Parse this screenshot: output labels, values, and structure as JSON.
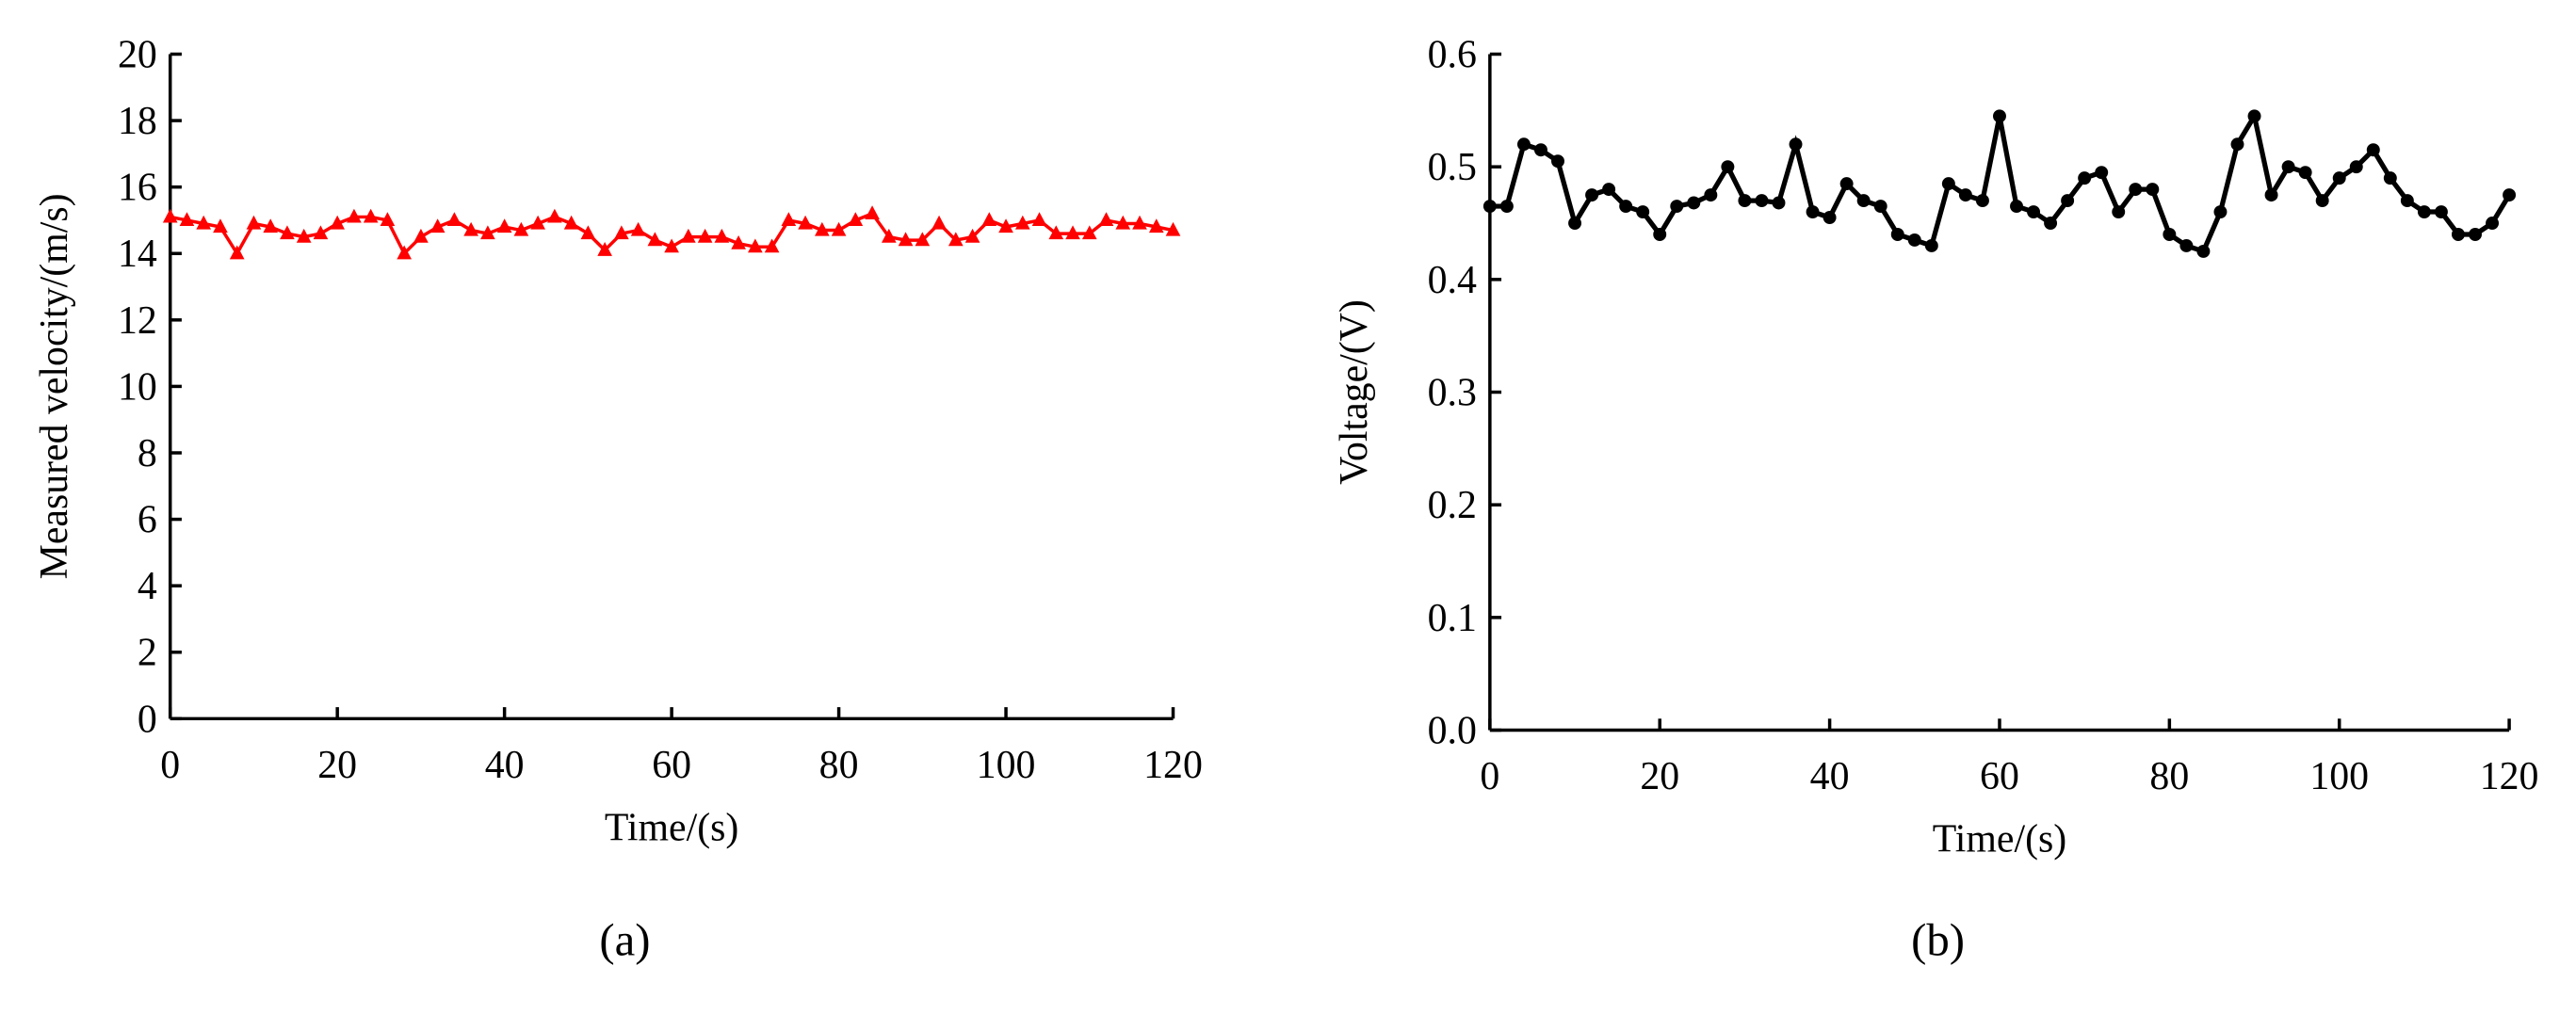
{
  "chart_data": [
    {
      "type": "line",
      "label": "(a)",
      "xlabel": "Time/(s)",
      "ylabel": "Measured velocity/(m/s)",
      "color": "#ff0000",
      "marker": "triangle",
      "xlim": [
        0,
        120
      ],
      "xticks": [
        0,
        20,
        40,
        60,
        80,
        100,
        120
      ],
      "ylim": [
        0,
        20
      ],
      "yticks": [
        0,
        2,
        4,
        6,
        8,
        10,
        12,
        14,
        16,
        18,
        20
      ],
      "x": [
        0,
        2,
        4,
        6,
        8,
        10,
        12,
        14,
        16,
        18,
        20,
        22,
        24,
        26,
        28,
        30,
        32,
        34,
        36,
        38,
        40,
        42,
        44,
        46,
        48,
        50,
        52,
        54,
        56,
        58,
        60,
        62,
        64,
        66,
        68,
        70,
        72,
        74,
        76,
        78,
        80,
        82,
        84,
        86,
        88,
        90,
        92,
        94,
        96,
        98,
        100,
        102,
        104,
        106,
        108,
        110,
        112,
        114,
        116,
        118,
        120
      ],
      "values": [
        15.1,
        15.0,
        14.9,
        14.8,
        14.0,
        14.9,
        14.8,
        14.6,
        14.5,
        14.6,
        14.9,
        15.1,
        15.1,
        15.0,
        14.0,
        14.5,
        14.8,
        15.0,
        14.7,
        14.6,
        14.8,
        14.7,
        14.9,
        15.1,
        14.9,
        14.6,
        14.1,
        14.6,
        14.7,
        14.4,
        14.2,
        14.5,
        14.5,
        14.5,
        14.3,
        14.2,
        14.2,
        15.0,
        14.9,
        14.7,
        14.7,
        15.0,
        15.2,
        14.5,
        14.4,
        14.4,
        14.9,
        14.4,
        14.5,
        15.0,
        14.8,
        14.9,
        15.0,
        14.6,
        14.6,
        14.6,
        15.0,
        14.9,
        14.9,
        14.8,
        14.7
      ]
    },
    {
      "type": "line",
      "label": "(b)",
      "xlabel": "Time/(s)",
      "ylabel": "Voltage/(V)",
      "color": "#000000",
      "marker": "circle",
      "xlim": [
        0,
        120
      ],
      "xticks": [
        0,
        20,
        40,
        60,
        80,
        100,
        120
      ],
      "ylim": [
        0,
        0.6
      ],
      "yticks": [
        {
          "value": 0,
          "label": "0.0"
        },
        0.1,
        0.2,
        0.3,
        0.4,
        0.5,
        0.6
      ],
      "x": [
        0,
        2,
        4,
        6,
        8,
        10,
        12,
        14,
        16,
        18,
        20,
        22,
        24,
        26,
        28,
        30,
        32,
        34,
        36,
        38,
        40,
        42,
        44,
        46,
        48,
        50,
        52,
        54,
        56,
        58,
        60,
        62,
        64,
        66,
        68,
        70,
        72,
        74,
        76,
        78,
        80,
        82,
        84,
        86,
        88,
        90,
        92,
        94,
        96,
        98,
        100,
        102,
        104,
        106,
        108,
        110,
        112,
        114,
        116,
        118,
        120
      ],
      "values": [
        0.465,
        0.465,
        0.52,
        0.515,
        0.505,
        0.45,
        0.475,
        0.48,
        0.465,
        0.46,
        0.44,
        0.465,
        0.468,
        0.475,
        0.5,
        0.47,
        0.47,
        0.468,
        0.52,
        0.46,
        0.455,
        0.485,
        0.47,
        0.465,
        0.44,
        0.435,
        0.43,
        0.485,
        0.475,
        0.47,
        0.545,
        0.465,
        0.46,
        0.45,
        0.47,
        0.49,
        0.495,
        0.46,
        0.48,
        0.48,
        0.44,
        0.43,
        0.425,
        0.46,
        0.52,
        0.545,
        0.475,
        0.5,
        0.495,
        0.47,
        0.49,
        0.5,
        0.515,
        0.49,
        0.47,
        0.46,
        0.46,
        0.44,
        0.44,
        0.45,
        0.475
      ]
    }
  ]
}
